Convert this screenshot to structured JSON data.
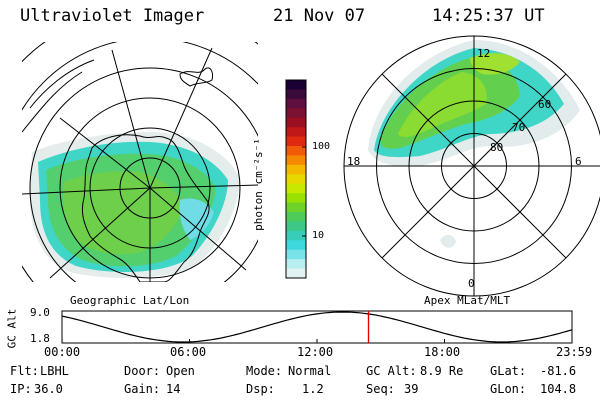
{
  "header": {
    "instrument": "Ultraviolet Imager",
    "date": "21 Nov 07",
    "time": "14:25:37 UT"
  },
  "left_panel": {
    "caption": "Geographic Lat/Lon"
  },
  "right_panel": {
    "caption": "Apex MLat/MLT",
    "mlt_labels": [
      "12",
      "18",
      "6",
      "0"
    ],
    "mlat_labels": [
      "60",
      "70",
      "80"
    ]
  },
  "colorbar": {
    "unit_label": "photon cm⁻²s⁻¹",
    "tick_labels": [
      "100",
      "10"
    ],
    "colors": [
      "#1a0033",
      "#3a0a3a",
      "#5e0f3e",
      "#7a1130",
      "#9a1020",
      "#c01818",
      "#e02a10",
      "#f05a08",
      "#f58a00",
      "#f5b800",
      "#e8d800",
      "#c8e800",
      "#9ae000",
      "#6ed22a",
      "#4ecb58",
      "#3ec888",
      "#38cdb6",
      "#3cd8dc",
      "#78e4ea",
      "#b8eef0",
      "#e2f2f2"
    ]
  },
  "altitude_plot": {
    "ylabel": "GC Alt",
    "y_ticks": [
      "9.0",
      "1.8"
    ],
    "x_ticks": [
      "00:00",
      "06:00",
      "12:00",
      "18:00",
      "23:59"
    ],
    "current_time_fraction": 0.601
  },
  "info": {
    "flt_label": "Flt:",
    "flt_value": "LBHL",
    "door_label": "Door:",
    "door_value": "Open",
    "mode_label": "Mode:",
    "mode_value": "Normal",
    "gcalt_label": "GC Alt:",
    "gcalt_value": "8.9 Re",
    "glat_label": "GLat:",
    "glat_value": "-81.6",
    "ip_label": "IP:",
    "ip_value": "36.0",
    "gain_label": "Gain:",
    "gain_value": "14",
    "dsp_label": "Dsp:",
    "dsp_value": "1.2",
    "seq_label": "Seq:",
    "seq_value": "39",
    "glon_label": "GLon:",
    "glon_value": "104.8"
  }
}
